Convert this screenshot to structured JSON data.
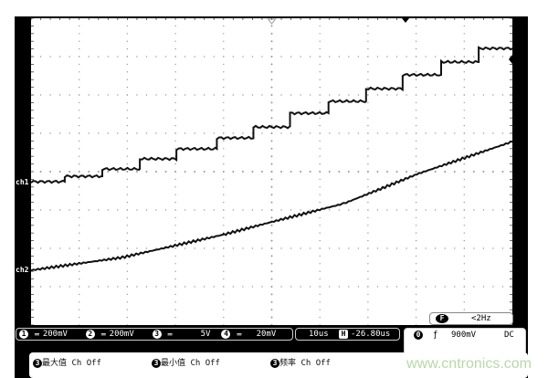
{
  "channels": [
    {
      "num": "1",
      "coupling": "═",
      "scale": "200mV",
      "label": "ch1"
    },
    {
      "num": "2",
      "coupling": "═",
      "scale": "200mV",
      "label": "ch2"
    },
    {
      "num": "3",
      "coupling": "═",
      "scale": "5V"
    },
    {
      "num": "4",
      "coupling": "═",
      "scale": "20mV"
    }
  ],
  "timebase": {
    "scale": "10us",
    "h_icon": "H",
    "offset": "-26.80us"
  },
  "trigger": {
    "source": "0",
    "slope_icon": "ƒ",
    "level": "900mV",
    "coupling": "DC"
  },
  "filter": {
    "icon": "F",
    "value": "<2Hz"
  },
  "measurements": [
    {
      "icon": "3",
      "name": "最大值",
      "value": "Ch Off"
    },
    {
      "icon": "3",
      "name": "最小值",
      "value": "Ch Off"
    },
    {
      "icon": "3",
      "name": "频率",
      "value": "Ch Off"
    }
  ],
  "watermark": "www.cntronics.com",
  "colors": {
    "screen": "#ffffff",
    "trace": "#111111",
    "frame": "#000000",
    "grid": "#999999",
    "watermark": "#b8d8a8"
  },
  "chart_data": {
    "type": "line",
    "grid": true,
    "x_divisions": 10,
    "y_divisions": 8,
    "x_unit": "us",
    "xlim": [
      -50,
      50
    ],
    "series": [
      {
        "name": "ch1",
        "units": "mV",
        "step": true,
        "x": [
          -50,
          -43,
          -35.2,
          -27.4,
          -19.8,
          -11.4,
          -3.8,
          3.8,
          11.8,
          19.6,
          27.2,
          35.2,
          43,
          50
        ],
        "y": [
          5,
          33,
          71,
          124,
          176,
          233,
          290,
          362,
          424,
          490,
          562,
          629,
          700,
          700
        ]
      },
      {
        "name": "ch2",
        "units": "mV",
        "x": [
          -50,
          -31,
          -10,
          0,
          15,
          30.6,
          50
        ],
        "y": [
          0,
          67,
          186,
          252,
          348,
          505,
          671
        ]
      }
    ]
  }
}
